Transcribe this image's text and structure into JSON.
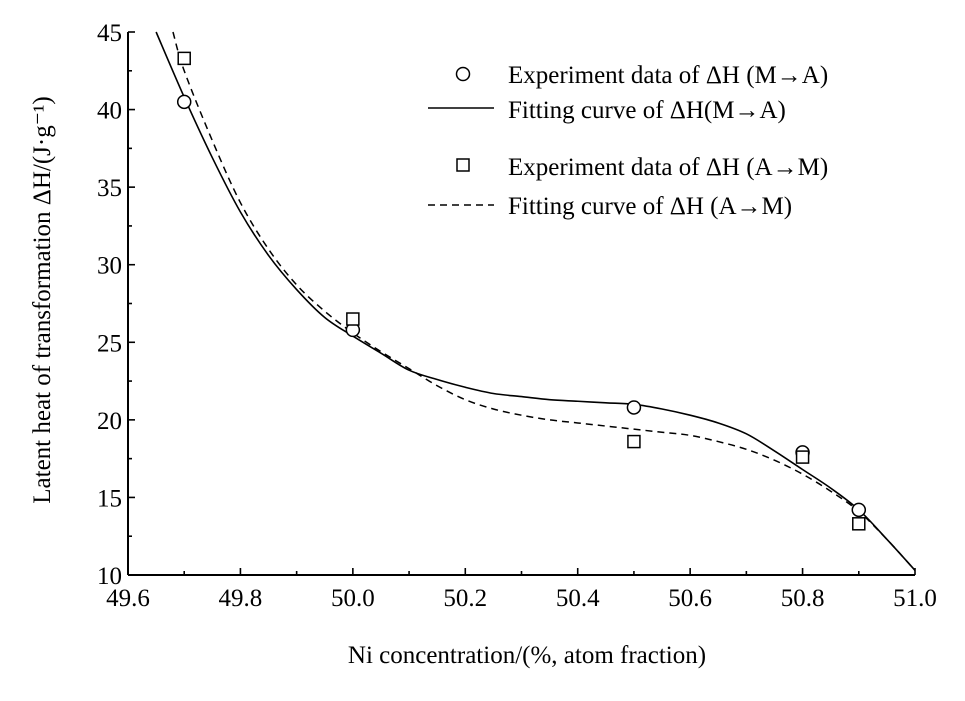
{
  "chart_data": {
    "type": "scatter",
    "xlabel": "Ni concentration/(%, atom fraction)",
    "ylabel": "Latent heat of transformation ΔH/(J·g⁻¹)",
    "xlim": [
      49.6,
      51.0
    ],
    "ylim": [
      10,
      45
    ],
    "xticks": [
      49.6,
      49.8,
      50.0,
      50.2,
      50.4,
      50.6,
      50.8,
      51.0
    ],
    "xtick_labels": [
      "49.6",
      "49.8",
      "50.0",
      "50.2",
      "50.4",
      "50.6",
      "50.8",
      "51.0"
    ],
    "yticks": [
      10,
      15,
      20,
      25,
      30,
      35,
      40,
      45
    ],
    "ytick_labels": [
      "10",
      "15",
      "20",
      "25",
      "30",
      "35",
      "40",
      "45"
    ],
    "grid": false,
    "legend_position": "top-right",
    "series": [
      {
        "name": "Experiment data of ΔH (M→A)",
        "style": "circle-marker",
        "x": [
          49.7,
          50.0,
          50.5,
          50.8,
          50.9
        ],
        "y": [
          40.5,
          25.8,
          20.8,
          17.9,
          14.2
        ]
      },
      {
        "name": "Fitting curve of ΔH(M→A)",
        "style": "solid-line",
        "x": [
          49.65,
          49.7,
          49.75,
          49.8,
          49.85,
          49.9,
          49.95,
          50.0,
          50.05,
          50.1,
          50.15,
          50.2,
          50.25,
          50.3,
          50.35,
          50.4,
          50.45,
          50.5,
          50.55,
          50.6,
          50.65,
          50.7,
          50.75,
          50.8,
          50.85,
          50.9,
          50.95,
          51.0
        ],
        "y": [
          45.0,
          40.8,
          36.9,
          33.4,
          30.6,
          28.4,
          26.6,
          25.4,
          24.3,
          23.2,
          22.6,
          22.1,
          21.7,
          21.5,
          21.3,
          21.2,
          21.1,
          21.0,
          20.7,
          20.3,
          19.8,
          19.1,
          18.0,
          16.8,
          15.6,
          14.2,
          12.3,
          10.3
        ]
      },
      {
        "name": "Experiment data of ΔH (A→M)",
        "style": "square-marker",
        "x": [
          49.7,
          50.0,
          50.5,
          50.8,
          50.9
        ],
        "y": [
          43.3,
          26.5,
          18.6,
          17.6,
          13.3
        ]
      },
      {
        "name": "Fitting curve of ΔH (A→M)",
        "style": "dashed-line",
        "x": [
          49.68,
          49.7,
          49.75,
          49.8,
          49.85,
          49.9,
          49.95,
          50.0,
          50.05,
          50.1,
          50.15,
          50.2,
          50.25,
          50.3,
          50.35,
          50.4,
          50.45,
          50.5,
          50.55,
          50.6,
          50.65,
          50.7,
          50.75,
          50.8,
          50.85,
          50.9,
          50.95,
          51.0
        ],
        "y": [
          45.0,
          42.5,
          38.0,
          34.0,
          31.0,
          28.7,
          27.0,
          25.6,
          24.4,
          23.3,
          22.2,
          21.3,
          20.7,
          20.3,
          20.0,
          19.8,
          19.6,
          19.4,
          19.2,
          19.0,
          18.6,
          18.1,
          17.4,
          16.5,
          15.4,
          14.1,
          12.3,
          10.3
        ]
      }
    ]
  }
}
